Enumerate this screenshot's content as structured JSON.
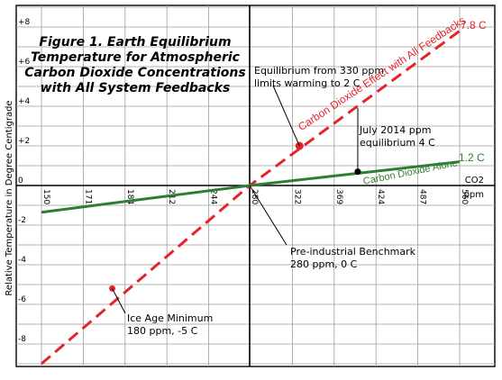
{
  "chart_data": {
    "type": "line",
    "title_lines": [
      "Figure 1. Earth Equilibrium",
      "Temperature for Atmospheric",
      "Carbon Dioxide Concentrations",
      "with All System Feedbacks"
    ],
    "ylabel": "Relative Temperature in Degree Centigrade",
    "xlabel": "CO2",
    "xlabel_unit": "ppm",
    "y_ticks": [
      "+8",
      "+6",
      "+4",
      "+2",
      "0",
      "-2",
      "-4",
      "-6",
      "-8"
    ],
    "y_tick_values": [
      8,
      6,
      4,
      2,
      0,
      -2,
      -4,
      -6,
      -8
    ],
    "x_ticks": [
      "150",
      "171",
      "184",
      "212",
      "244",
      "280",
      "322",
      "369",
      "424",
      "487",
      "560"
    ],
    "ylim": [
      -9,
      9
    ],
    "grid": true,
    "series": [
      {
        "name": "Carbon Dioxide Effect with All Feedbacks",
        "color": "#e3242b",
        "style": "dashed",
        "x": [
          150,
          280,
          560
        ],
        "y": [
          -9,
          0,
          7.8
        ],
        "end_label": "7.8 C"
      },
      {
        "name": "Carbon Dioxide Alone",
        "color": "#2e7d32",
        "style": "solid",
        "x": [
          150,
          280,
          560
        ],
        "y": [
          -1.35,
          0,
          1.2
        ],
        "end_label": "1.2 C"
      }
    ],
    "points": [
      {
        "x": 330,
        "y": 2,
        "color": "#e3242b"
      },
      {
        "x": 400,
        "y": 0.7,
        "color": "#000000"
      },
      {
        "x": 180,
        "y": -5.2,
        "color": "#e3242b"
      }
    ],
    "annotations": [
      {
        "lines": [
          "Equilibrium from 330 ppm",
          "limits warming to 2 C"
        ]
      },
      {
        "lines": [
          "July 2014 ppm",
          "equilibrium 4 C"
        ]
      },
      {
        "lines": [
          "Pre-industrial Benchmark",
          "280 ppm, 0 C"
        ]
      },
      {
        "lines": [
          "Ice Age Minimum",
          "180 ppm, -5 C"
        ]
      }
    ]
  }
}
